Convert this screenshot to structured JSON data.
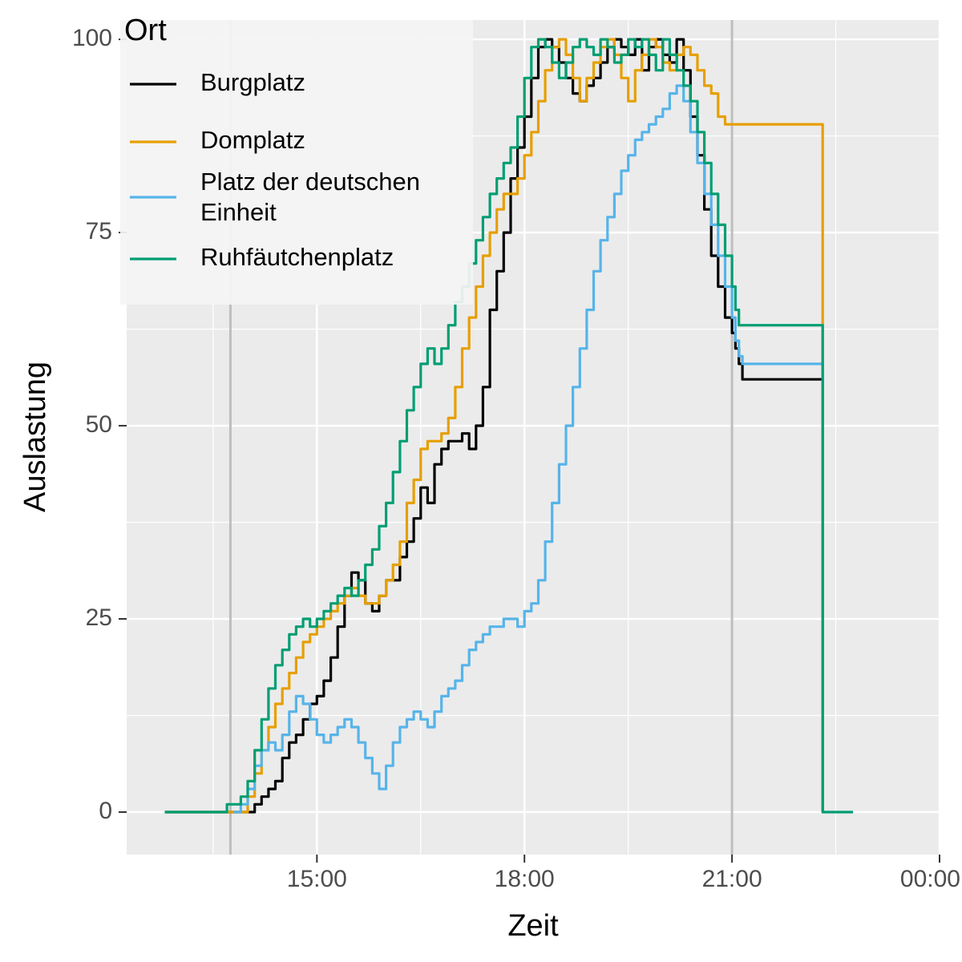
{
  "chart_data": {
    "type": "line",
    "xlabel": "Zeit",
    "ylabel": "Auslastung",
    "x_unit": "hours of day",
    "xlim": [
      12.25,
      24.0
    ],
    "ylim": [
      -5.5,
      102.5
    ],
    "x_ticks": [
      {
        "value": 15,
        "label": "15:00"
      },
      {
        "value": 18,
        "label": "18:00"
      },
      {
        "value": 21,
        "label": "21:00"
      },
      {
        "value": 24,
        "label": "00:00"
      }
    ],
    "y_ticks": [
      {
        "value": 0,
        "label": "0"
      },
      {
        "value": 25,
        "label": "25"
      },
      {
        "value": 50,
        "label": "50"
      },
      {
        "value": 75,
        "label": "75"
      },
      {
        "value": 100,
        "label": "100"
      }
    ],
    "vlines": [
      13.75,
      21.0
    ],
    "grid": true,
    "legend": {
      "title": "Ort",
      "position": "top-left"
    },
    "series": [
      {
        "name": "Burgplatz",
        "color": "#000000",
        "x": [
          12.8,
          13.5,
          13.8,
          13.95,
          14.0,
          14.1,
          14.2,
          14.3,
          14.4,
          14.5,
          14.6,
          14.7,
          14.8,
          14.9,
          15.0,
          15.1,
          15.2,
          15.3,
          15.4,
          15.5,
          15.6,
          15.7,
          15.8,
          15.9,
          16.0,
          16.1,
          16.2,
          16.3,
          16.4,
          16.5,
          16.6,
          16.7,
          16.8,
          16.9,
          17.0,
          17.1,
          17.2,
          17.3,
          17.4,
          17.5,
          17.6,
          17.7,
          17.8,
          17.9,
          18.0,
          18.1,
          18.2,
          18.3,
          18.4,
          18.5,
          18.6,
          18.7,
          18.8,
          18.9,
          19.0,
          19.1,
          19.2,
          19.3,
          19.4,
          19.5,
          19.6,
          19.7,
          19.8,
          19.9,
          20.0,
          20.1,
          20.2,
          20.3,
          20.4,
          20.5,
          20.6,
          20.7,
          20.8,
          20.9,
          21.0,
          21.05,
          21.1,
          21.15,
          21.2,
          22.3,
          22.31
        ],
        "y": [
          0,
          0,
          0,
          0,
          0,
          1,
          2,
          3,
          4,
          7,
          9,
          10,
          12,
          14,
          15,
          17,
          20,
          24,
          28,
          31,
          30,
          27,
          26,
          28,
          30,
          30,
          33,
          35,
          38,
          42,
          40,
          45,
          47,
          48,
          48,
          49,
          47,
          50,
          55,
          65,
          70,
          75,
          82,
          86,
          90,
          95,
          99,
          100,
          99,
          97,
          95,
          93,
          92,
          94,
          95,
          97,
          99,
          100,
          99,
          98,
          100,
          96,
          99,
          100,
          98,
          97,
          100,
          96,
          90,
          85,
          78,
          72,
          68,
          64,
          62,
          60,
          58,
          56,
          56,
          56,
          0
        ]
      },
      {
        "name": "Domplatz",
        "color": "#e69f00",
        "x": [
          12.8,
          13.5,
          13.8,
          13.9,
          14.0,
          14.1,
          14.2,
          14.3,
          14.4,
          14.5,
          14.6,
          14.7,
          14.8,
          14.9,
          15.0,
          15.1,
          15.2,
          15.3,
          15.4,
          15.5,
          15.6,
          15.7,
          15.8,
          15.9,
          16.0,
          16.1,
          16.2,
          16.3,
          16.4,
          16.5,
          16.6,
          16.7,
          16.8,
          16.9,
          17.0,
          17.1,
          17.2,
          17.3,
          17.4,
          17.5,
          17.6,
          17.7,
          17.8,
          17.9,
          18.0,
          18.1,
          18.2,
          18.3,
          18.4,
          18.5,
          18.6,
          18.7,
          18.8,
          18.9,
          19.0,
          19.1,
          19.2,
          19.3,
          19.4,
          19.5,
          19.6,
          19.7,
          19.8,
          19.9,
          20.0,
          20.1,
          20.2,
          20.3,
          20.4,
          20.5,
          20.6,
          20.7,
          20.8,
          20.9,
          20.95,
          21.0,
          21.05,
          21.1,
          22.3,
          22.31
        ],
        "y": [
          0,
          0,
          0,
          0,
          2,
          5,
          8,
          11,
          14,
          16,
          18,
          20,
          22,
          23,
          24,
          25,
          26,
          27,
          28,
          29,
          28,
          27,
          27,
          28,
          30,
          32,
          35,
          40,
          43,
          47,
          48,
          48,
          49,
          51,
          55,
          60,
          64,
          68,
          72,
          75,
          78,
          80,
          80,
          82,
          85,
          88,
          92,
          96,
          99,
          100,
          98,
          95,
          92,
          95,
          97,
          99,
          100,
          98,
          95,
          92,
          96,
          98,
          100,
          99,
          97,
          96,
          98,
          99,
          98,
          96,
          94,
          93,
          90,
          89,
          89,
          89,
          89,
          89,
          89,
          0
        ]
      },
      {
        "name": "Platz der deutschen\nEinheit",
        "color": "#56b4e9",
        "x": [
          13.8,
          13.9,
          14.0,
          14.1,
          14.2,
          14.3,
          14.4,
          14.5,
          14.6,
          14.7,
          14.8,
          14.9,
          15.0,
          15.1,
          15.2,
          15.3,
          15.4,
          15.5,
          15.6,
          15.7,
          15.8,
          15.9,
          16.0,
          16.1,
          16.2,
          16.3,
          16.4,
          16.5,
          16.6,
          16.7,
          16.8,
          16.9,
          17.0,
          17.1,
          17.2,
          17.3,
          17.4,
          17.5,
          17.6,
          17.7,
          17.8,
          17.9,
          18.0,
          18.1,
          18.2,
          18.3,
          18.4,
          18.5,
          18.6,
          18.7,
          18.8,
          18.9,
          19.0,
          19.1,
          19.2,
          19.3,
          19.4,
          19.5,
          19.6,
          19.7,
          19.8,
          19.9,
          20.0,
          20.1,
          20.2,
          20.3,
          20.4,
          20.5,
          20.6,
          20.7,
          20.8,
          20.9,
          21.0,
          21.05,
          21.1,
          21.15,
          22.3,
          22.31
        ],
        "y": [
          0,
          1,
          3,
          6,
          8,
          9,
          8,
          10,
          13,
          15,
          14,
          12,
          10,
          9,
          10,
          11,
          12,
          11,
          9,
          7,
          5,
          3,
          6,
          9,
          11,
          12,
          13,
          12,
          11,
          13,
          15,
          16,
          17,
          19,
          21,
          22,
          23,
          24,
          24,
          25,
          25,
          24,
          26,
          27,
          30,
          35,
          40,
          45,
          50,
          55,
          60,
          65,
          70,
          74,
          77,
          80,
          83,
          85,
          87,
          88,
          89,
          90,
          91,
          93,
          94,
          92,
          88,
          84,
          80,
          76,
          72,
          68,
          64,
          61,
          59,
          58,
          58,
          0
        ]
      },
      {
        "name": "Ruhfäutchenplatz",
        "color": "#009e73",
        "x": [
          12.8,
          13.5,
          13.7,
          13.8,
          13.9,
          14.0,
          14.1,
          14.2,
          14.3,
          14.4,
          14.5,
          14.6,
          14.7,
          14.8,
          14.9,
          15.0,
          15.1,
          15.2,
          15.3,
          15.4,
          15.5,
          15.6,
          15.7,
          15.8,
          15.9,
          16.0,
          16.1,
          16.2,
          16.3,
          16.4,
          16.5,
          16.6,
          16.7,
          16.8,
          16.9,
          17.0,
          17.1,
          17.2,
          17.3,
          17.4,
          17.5,
          17.6,
          17.7,
          17.8,
          17.9,
          18.0,
          18.1,
          18.2,
          18.3,
          18.4,
          18.5,
          18.6,
          18.7,
          18.8,
          18.9,
          19.0,
          19.1,
          19.2,
          19.3,
          19.4,
          19.5,
          19.6,
          19.7,
          19.8,
          19.9,
          20.0,
          20.1,
          20.2,
          20.3,
          20.4,
          20.5,
          20.6,
          20.7,
          20.8,
          20.9,
          21.0,
          21.05,
          21.1,
          22.3,
          22.31,
          22.75
        ],
        "y": [
          0,
          0,
          1,
          1,
          2,
          4,
          8,
          12,
          16,
          19,
          21,
          23,
          24,
          25,
          24,
          25,
          26,
          27,
          28,
          29,
          28,
          30,
          32,
          34,
          37,
          40,
          44,
          48,
          52,
          55,
          58,
          60,
          58,
          60,
          63,
          66,
          68,
          71,
          74,
          77,
          80,
          82,
          84,
          86,
          90,
          95,
          99,
          100,
          99,
          97,
          95,
          97,
          99,
          100,
          99,
          98,
          100,
          99,
          97,
          98,
          100,
          99,
          100,
          98,
          96,
          100,
          98,
          96,
          94,
          92,
          88,
          84,
          80,
          76,
          72,
          68,
          65,
          63,
          63,
          0,
          0
        ]
      }
    ]
  }
}
